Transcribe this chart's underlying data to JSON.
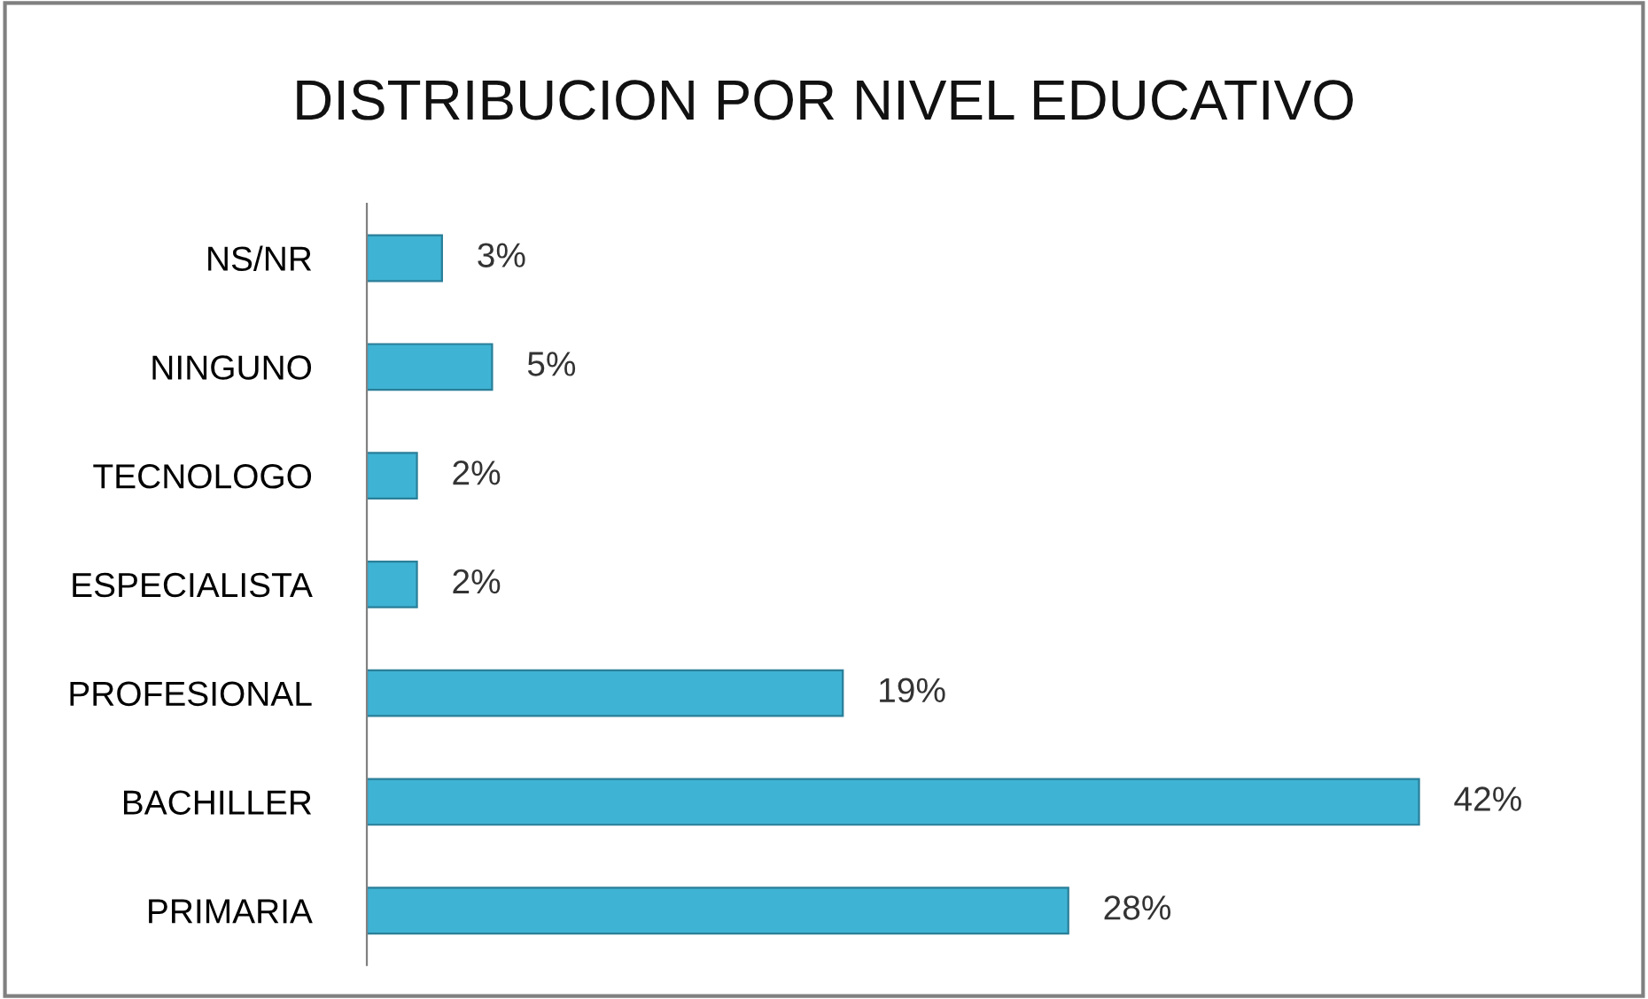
{
  "chart_data": {
    "type": "bar",
    "orientation": "horizontal",
    "title": "DISTRIBUCION POR NIVEL EDUCATIVO",
    "categories": [
      "NS/NR",
      "NINGUNO",
      "TECNOLOGO",
      "ESPECIALISTA",
      "PROFESIONAL",
      "BACHILLER",
      "PRIMARIA"
    ],
    "values": [
      3,
      5,
      2,
      2,
      19,
      42,
      28
    ],
    "value_labels": [
      "3%",
      "5%",
      "2%",
      "2%",
      "19%",
      "42%",
      "28%"
    ],
    "color": "#3fb3d3",
    "tick_labels": "y",
    "grid": false,
    "legend": false
  }
}
